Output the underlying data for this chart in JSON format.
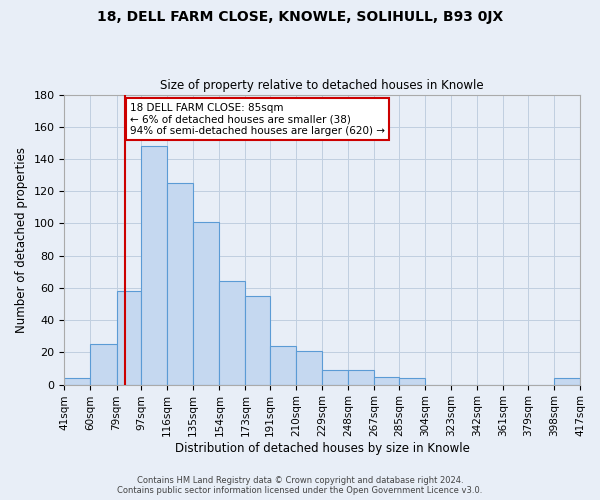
{
  "title": "18, DELL FARM CLOSE, KNOWLE, SOLIHULL, B93 0JX",
  "subtitle": "Size of property relative to detached houses in Knowle",
  "xlabel": "Distribution of detached houses by size in Knowle",
  "ylabel": "Number of detached properties",
  "bin_edges": [
    41,
    60,
    79,
    97,
    116,
    135,
    154,
    173,
    191,
    210,
    229,
    248,
    267,
    285,
    304,
    323,
    342,
    361,
    379,
    398,
    417
  ],
  "bin_labels": [
    "41sqm",
    "60sqm",
    "79sqm",
    "97sqm",
    "116sqm",
    "135sqm",
    "154sqm",
    "173sqm",
    "191sqm",
    "210sqm",
    "229sqm",
    "248sqm",
    "267sqm",
    "285sqm",
    "304sqm",
    "323sqm",
    "342sqm",
    "361sqm",
    "379sqm",
    "398sqm",
    "417sqm"
  ],
  "counts": [
    4,
    25,
    58,
    148,
    125,
    101,
    64,
    55,
    24,
    21,
    9,
    9,
    5,
    4,
    0,
    0,
    0,
    0,
    0,
    4
  ],
  "bar_color": "#c5d8f0",
  "bar_edge_color": "#5b9bd5",
  "grid_color": "#c0cfe0",
  "bg_color": "#e8eef7",
  "red_line_x": 85,
  "annotation_text": "18 DELL FARM CLOSE: 85sqm\n← 6% of detached houses are smaller (38)\n94% of semi-detached houses are larger (620) →",
  "annotation_box_color": "#ffffff",
  "annotation_box_edge": "#cc0000",
  "ylim": [
    0,
    180
  ],
  "yticks": [
    0,
    20,
    40,
    60,
    80,
    100,
    120,
    140,
    160,
    180
  ],
  "footer1": "Contains HM Land Registry data © Crown copyright and database right 2024.",
  "footer2": "Contains public sector information licensed under the Open Government Licence v3.0."
}
